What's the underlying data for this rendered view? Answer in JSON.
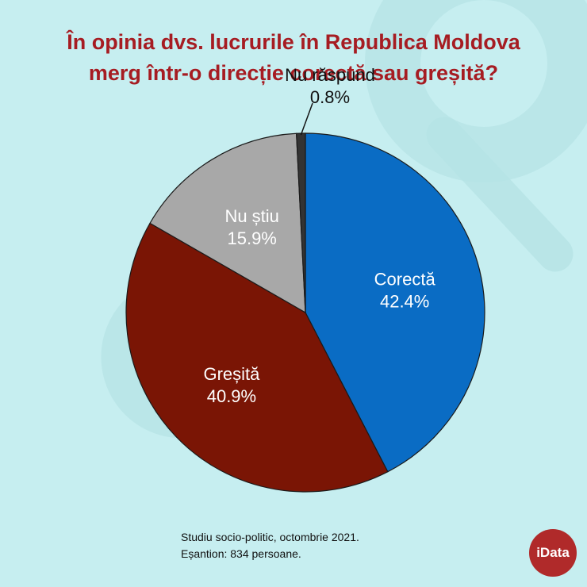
{
  "title": {
    "line1": "În opinia dvs. lucrurile în Republica Moldova",
    "line2": "merg într-o direcție corectă sau greșită?"
  },
  "chart_data": {
    "type": "pie",
    "title": "În opinia dvs. lucrurile în Republica Moldova merg într-o direcție corectă sau greșită?",
    "slices": [
      {
        "label": "Corectă",
        "value": 42.4,
        "value_label": "42.4%",
        "color": "#0a6cc4",
        "text_color": "#ffffff"
      },
      {
        "label": "Greșită",
        "value": 40.9,
        "value_label": "40.9%",
        "color": "#7a1505",
        "text_color": "#ffffff"
      },
      {
        "label": "Nu știu",
        "value": 15.9,
        "value_label": "15.9%",
        "color": "#a8a8a8",
        "text_color": "#ffffff"
      },
      {
        "label": "Nu răspund",
        "value": 0.8,
        "value_label": "0.8%",
        "color": "#333333",
        "text_color": "#111111"
      }
    ],
    "start": "12 o'clock",
    "direction": "clockwise",
    "legend": "none"
  },
  "source": {
    "line1": "Studiu socio-politic, octombrie 2021.",
    "line2": "Eșantion: 834 persoane."
  },
  "logo": {
    "text": "iData",
    "color": "#b02a2a"
  },
  "colors": {
    "background": "#c6eef0",
    "title": "#a61c22"
  }
}
